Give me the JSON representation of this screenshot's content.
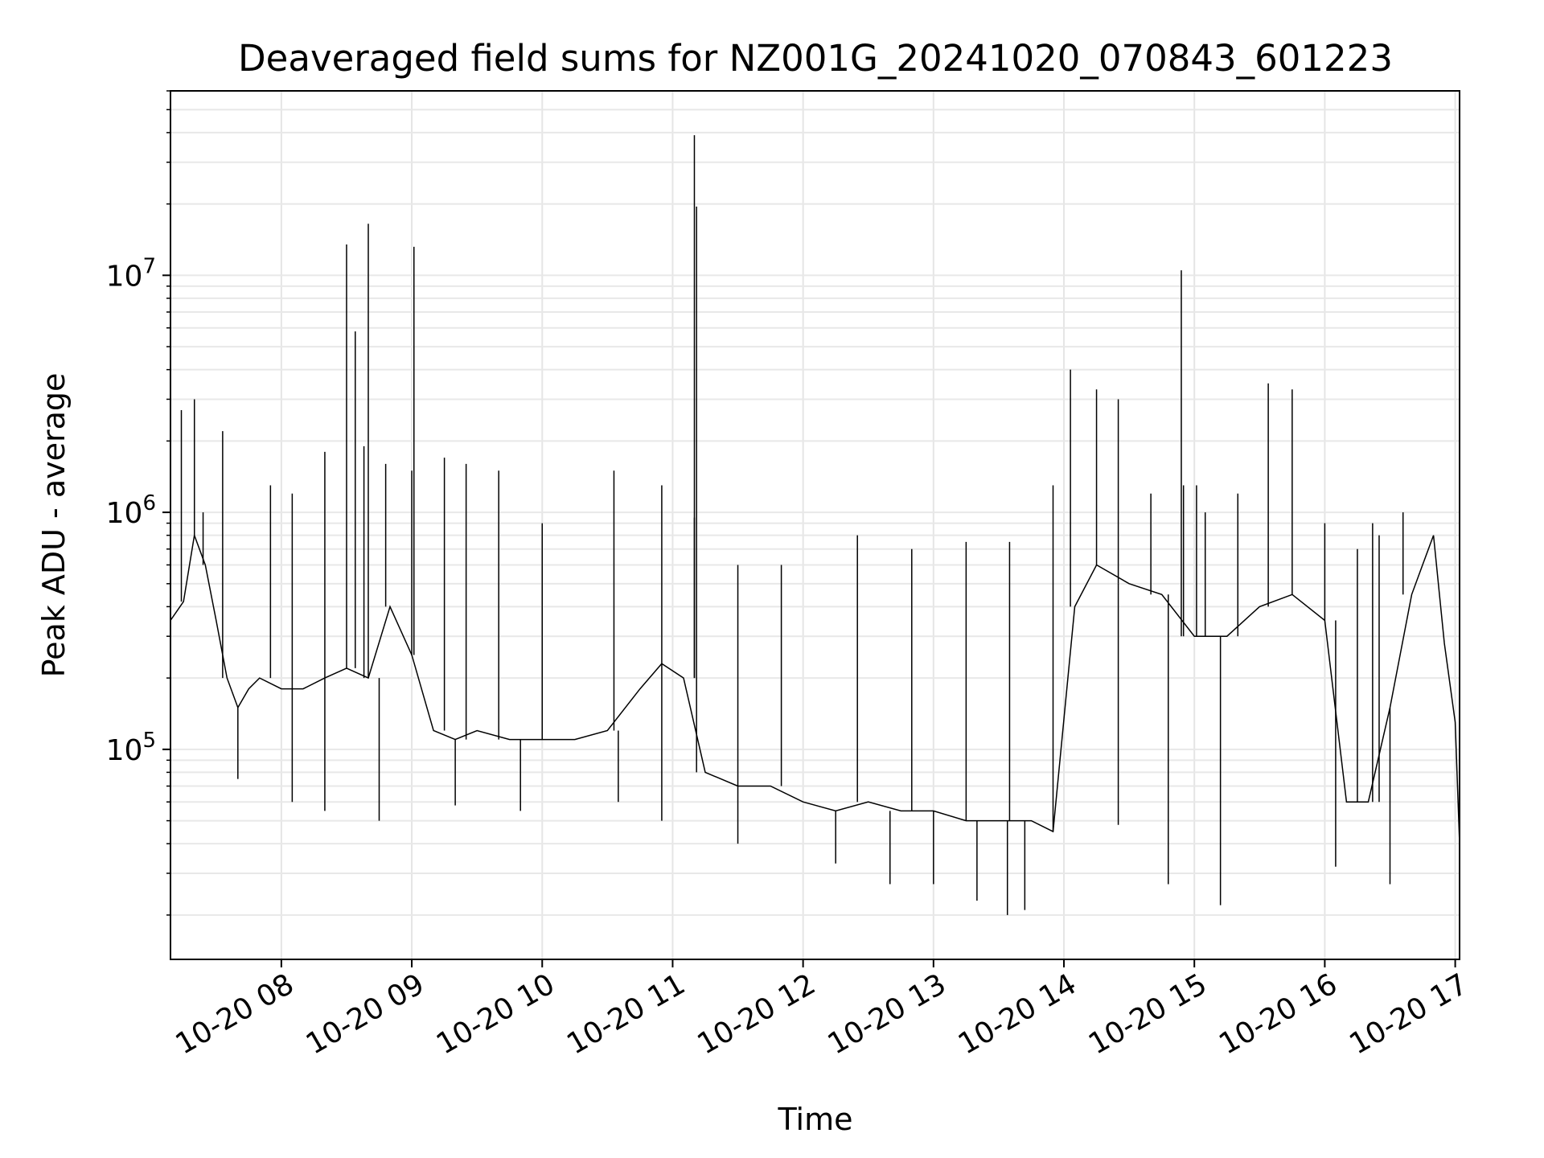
{
  "chart_data": {
    "type": "line",
    "title": "Deaveraged field sums for NZ001G_20241020_070843_601223",
    "xlabel": "Time",
    "ylabel": "Peak ADU - average",
    "yscale": "log",
    "ylim": [
      13000,
      60000000
    ],
    "xlim": [
      "2024-10-20 07:09",
      "2024-10-20 17:02"
    ],
    "grid": true,
    "line_color": "#000000",
    "x_ticks": [
      "10-20 08",
      "10-20 09",
      "10-20 10",
      "10-20 11",
      "10-20 12",
      "10-20 13",
      "10-20 14",
      "10-20 15",
      "10-20 16",
      "10-20 17"
    ],
    "y_ticks": [
      {
        "base": "10",
        "exp": "5",
        "value": 100000
      },
      {
        "base": "10",
        "exp": "6",
        "value": 1000000
      },
      {
        "base": "10",
        "exp": "7",
        "value": 10000000
      }
    ],
    "series": [
      {
        "x": [
          "2024-10-20 07:09",
          "2024-10-20 07:15",
          "2024-10-20 07:20",
          "2024-10-20 07:25",
          "2024-10-20 07:30",
          "2024-10-20 07:35",
          "2024-10-20 07:40",
          "2024-10-20 07:45",
          "2024-10-20 07:50",
          "2024-10-20 08:00",
          "2024-10-20 08:10",
          "2024-10-20 08:20",
          "2024-10-20 08:30",
          "2024-10-20 08:40",
          "2024-10-20 08:50",
          "2024-10-20 09:00",
          "2024-10-20 09:10",
          "2024-10-20 09:20",
          "2024-10-20 09:30",
          "2024-10-20 09:45",
          "2024-10-20 10:00",
          "2024-10-20 10:15",
          "2024-10-20 10:30",
          "2024-10-20 10:45",
          "2024-10-20 10:55",
          "2024-10-20 11:05",
          "2024-10-20 11:15",
          "2024-10-20 11:30",
          "2024-10-20 11:45",
          "2024-10-20 12:00",
          "2024-10-20 12:15",
          "2024-10-20 12:30",
          "2024-10-20 12:45",
          "2024-10-20 13:00",
          "2024-10-20 13:15",
          "2024-10-20 13:30",
          "2024-10-20 13:45",
          "2024-10-20 13:55",
          "2024-10-20 14:05",
          "2024-10-20 14:15",
          "2024-10-20 14:30",
          "2024-10-20 14:45",
          "2024-10-20 15:00",
          "2024-10-20 15:15",
          "2024-10-20 15:30",
          "2024-10-20 15:45",
          "2024-10-20 16:00",
          "2024-10-20 16:10",
          "2024-10-20 16:20",
          "2024-10-20 16:30",
          "2024-10-20 16:40",
          "2024-10-20 16:45",
          "2024-10-20 16:50",
          "2024-10-20 16:55",
          "2024-10-20 17:00",
          "2024-10-20 17:02"
        ],
        "y": [
          350000,
          420000,
          800000,
          600000,
          350000,
          200000,
          150000,
          180000,
          200000,
          180000,
          180000,
          200000,
          220000,
          200000,
          400000,
          250000,
          120000,
          110000,
          120000,
          110000,
          110000,
          110000,
          120000,
          180000,
          230000,
          200000,
          80000,
          70000,
          70000,
          60000,
          55000,
          60000,
          55000,
          55000,
          50000,
          50000,
          50000,
          45000,
          400000,
          600000,
          500000,
          450000,
          300000,
          300000,
          400000,
          450000,
          350000,
          60000,
          60000,
          150000,
          450000,
          600000,
          800000,
          280000,
          130000,
          40000
        ]
      },
      {
        "x": [
          "2024-10-20 07:14",
          "2024-10-20 07:20",
          "2024-10-20 07:24",
          "2024-10-20 07:33",
          "2024-10-20 07:55",
          "2024-10-20 08:05",
          "2024-10-20 08:20",
          "2024-10-20 08:30",
          "2024-10-20 08:38",
          "2024-10-20 08:48",
          "2024-10-20 09:01",
          "2024-10-20 09:15",
          "2024-10-20 09:25",
          "2024-10-20 09:40",
          "2024-10-20 10:00",
          "2024-10-20 10:33",
          "2024-10-20 10:55",
          "2024-10-20 11:10",
          "2024-10-20 11:30",
          "2024-10-20 11:50",
          "2024-10-20 12:25",
          "2024-10-20 12:50",
          "2024-10-20 13:15",
          "2024-10-20 13:35",
          "2024-10-20 13:55",
          "2024-10-20 14:03",
          "2024-10-20 14:15",
          "2024-10-20 14:25",
          "2024-10-20 14:40",
          "2024-10-20 14:55",
          "2024-10-20 15:05",
          "2024-10-20 15:20",
          "2024-10-20 15:34",
          "2024-10-20 15:45",
          "2024-10-20 16:00",
          "2024-10-20 16:15",
          "2024-10-20 16:25",
          "2024-10-20 16:36"
        ],
        "y": [
          2700000,
          3000000,
          1000000,
          2200000,
          1300000,
          1200000,
          1800000,
          13500000,
          1900000,
          1600000,
          13200000,
          1700000,
          1600000,
          1500000,
          900000,
          1500000,
          1300000,
          950000,
          600000,
          600000,
          800000,
          700000,
          750000,
          750000,
          1300000,
          4000000,
          3300000,
          3000000,
          1200000,
          1300000,
          1000000,
          1200000,
          3500000,
          3300000,
          900000,
          700000,
          800000,
          1000000
        ]
      },
      {
        "x": [
          "2024-10-20 08:34",
          "2024-10-20 08:40",
          "2024-10-20 09:00",
          "2024-10-20 11:10",
          "2024-10-20 11:11",
          "2024-10-20 14:54",
          "2024-10-20 15:01",
          "2024-10-20 16:22"
        ],
        "y": [
          5800000,
          16500000,
          1500000,
          39000000,
          19500000,
          10500000,
          1300000,
          900000
        ]
      },
      {
        "x": [
          "2024-10-20 07:40",
          "2024-10-20 08:05",
          "2024-10-20 08:20",
          "2024-10-20 08:45",
          "2024-10-20 09:20",
          "2024-10-20 09:50",
          "2024-10-20 10:35",
          "2024-10-20 10:55",
          "2024-10-20 11:30",
          "2024-10-20 12:15",
          "2024-10-20 12:40",
          "2024-10-20 13:00",
          "2024-10-20 13:20",
          "2024-10-20 13:34",
          "2024-10-20 13:42",
          "2024-10-20 14:25",
          "2024-10-20 14:48",
          "2024-10-20 15:12",
          "2024-10-20 16:05",
          "2024-10-20 16:30"
        ],
        "y": [
          75000,
          60000,
          55000,
          50000,
          58000,
          55000,
          60000,
          50000,
          40000,
          33000,
          27000,
          27000,
          23000,
          20000,
          21000,
          48000,
          27000,
          22000,
          32000,
          27000
        ]
      }
    ]
  }
}
